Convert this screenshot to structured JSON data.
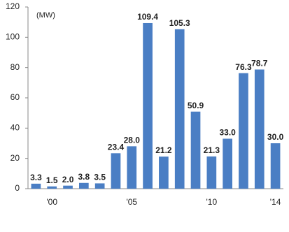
{
  "chart_data": {
    "type": "bar",
    "annotation": "(MW)",
    "categories": [
      null,
      "'00",
      null,
      null,
      null,
      null,
      "'05",
      null,
      null,
      null,
      null,
      "'10",
      null,
      null,
      null,
      "'14"
    ],
    "values": [
      3.3,
      1.5,
      2.0,
      3.8,
      3.5,
      23.4,
      28.0,
      109.4,
      21.2,
      105.3,
      50.9,
      21.3,
      33.0,
      76.3,
      78.7,
      30.0
    ],
    "value_labels": [
      "3.3",
      "1.5",
      "2.0",
      "3.8",
      "3.5",
      "23.4",
      "28.0",
      "109.4",
      "21.2",
      "105.3",
      "50.9",
      "21.3",
      "33.0",
      "76.3",
      "78.7",
      "30.0"
    ],
    "color": "#4a7ec4",
    "ylim": [
      0,
      120
    ],
    "yticks": [
      0,
      20,
      40,
      60,
      80,
      100,
      120
    ],
    "grid": false
  }
}
